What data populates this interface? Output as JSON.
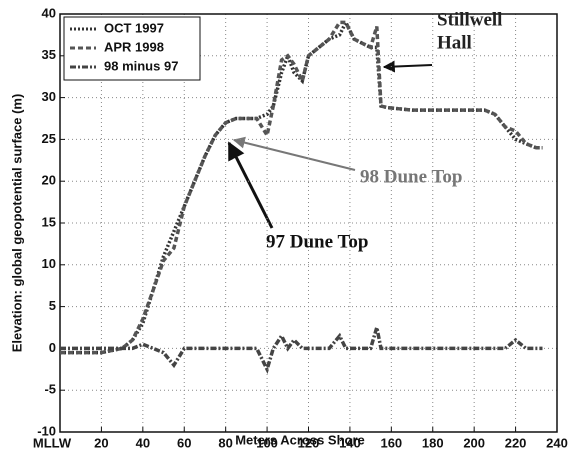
{
  "chart_data": {
    "type": "line",
    "x_label": "Meters Across Shore",
    "y_label": "Elevation: global geopotential surface (m)",
    "x": [
      0,
      10,
      20,
      30,
      35,
      40,
      45,
      50,
      55,
      60,
      65,
      70,
      75,
      80,
      85,
      90,
      95,
      100,
      103,
      107,
      110,
      113,
      117,
      120,
      125,
      130,
      135,
      138,
      142,
      146,
      150,
      153,
      155,
      158,
      170,
      190,
      205,
      210,
      215,
      220,
      225,
      230,
      233
    ],
    "series": [
      {
        "name": "OCT 1997",
        "color": "#333333",
        "style": "dotted",
        "values": [
          -0.5,
          -0.5,
          -0.5,
          0,
          1,
          3,
          7,
          11,
          14,
          17,
          20,
          23,
          25.5,
          27,
          27.5,
          27.5,
          27.5,
          28,
          29,
          33,
          35,
          33,
          32,
          35,
          36,
          37,
          37.5,
          39,
          37,
          36.5,
          36,
          36,
          29,
          28.8,
          28.5,
          28.5,
          28.5,
          28,
          26.5,
          25,
          24.5,
          24,
          24
        ]
      },
      {
        "name": "APR 1998",
        "color": "#555555",
        "style": "dashed",
        "values": [
          -0.5,
          -0.5,
          -0.5,
          0,
          1,
          3.5,
          7,
          10.5,
          12,
          17,
          20,
          23,
          25.5,
          27,
          27.5,
          27.5,
          27.5,
          25.5,
          29,
          34.5,
          35,
          34,
          32,
          35,
          36,
          37,
          39,
          39,
          37,
          36.5,
          36,
          38.5,
          29,
          28.8,
          28.5,
          28.5,
          28.5,
          28,
          26.5,
          26,
          24.5,
          24,
          24
        ]
      },
      {
        "name": "98 minus 97",
        "color": "#444444",
        "style": "dashdot",
        "values": [
          0,
          0,
          0,
          0,
          0,
          0.5,
          0,
          -0.5,
          -2,
          0,
          0,
          0,
          0,
          0,
          0,
          0,
          0,
          -2.5,
          0,
          1.5,
          0,
          1,
          0,
          0,
          0,
          0,
          1.5,
          0,
          0,
          0,
          0,
          2.5,
          0,
          0,
          0,
          0,
          0,
          0,
          0,
          1,
          0,
          0,
          0
        ]
      }
    ],
    "xlim": [
      0,
      240
    ],
    "xticks": [
      {
        "value": 0,
        "label": "MLLW"
      },
      20,
      40,
      60,
      80,
      100,
      120,
      140,
      160,
      180,
      200,
      220,
      240
    ],
    "ylim": [
      -10,
      40
    ],
    "yticks": [
      -10,
      -5,
      0,
      5,
      10,
      15,
      20,
      25,
      30,
      35,
      40
    ],
    "grid": true,
    "legend": "upper left",
    "annotations": [
      {
        "lines": [
          "Stillwell",
          "Hall"
        ]
      },
      {
        "lines": [
          "98 Dune Top"
        ]
      },
      {
        "lines": [
          "97 Dune Top"
        ]
      }
    ]
  }
}
